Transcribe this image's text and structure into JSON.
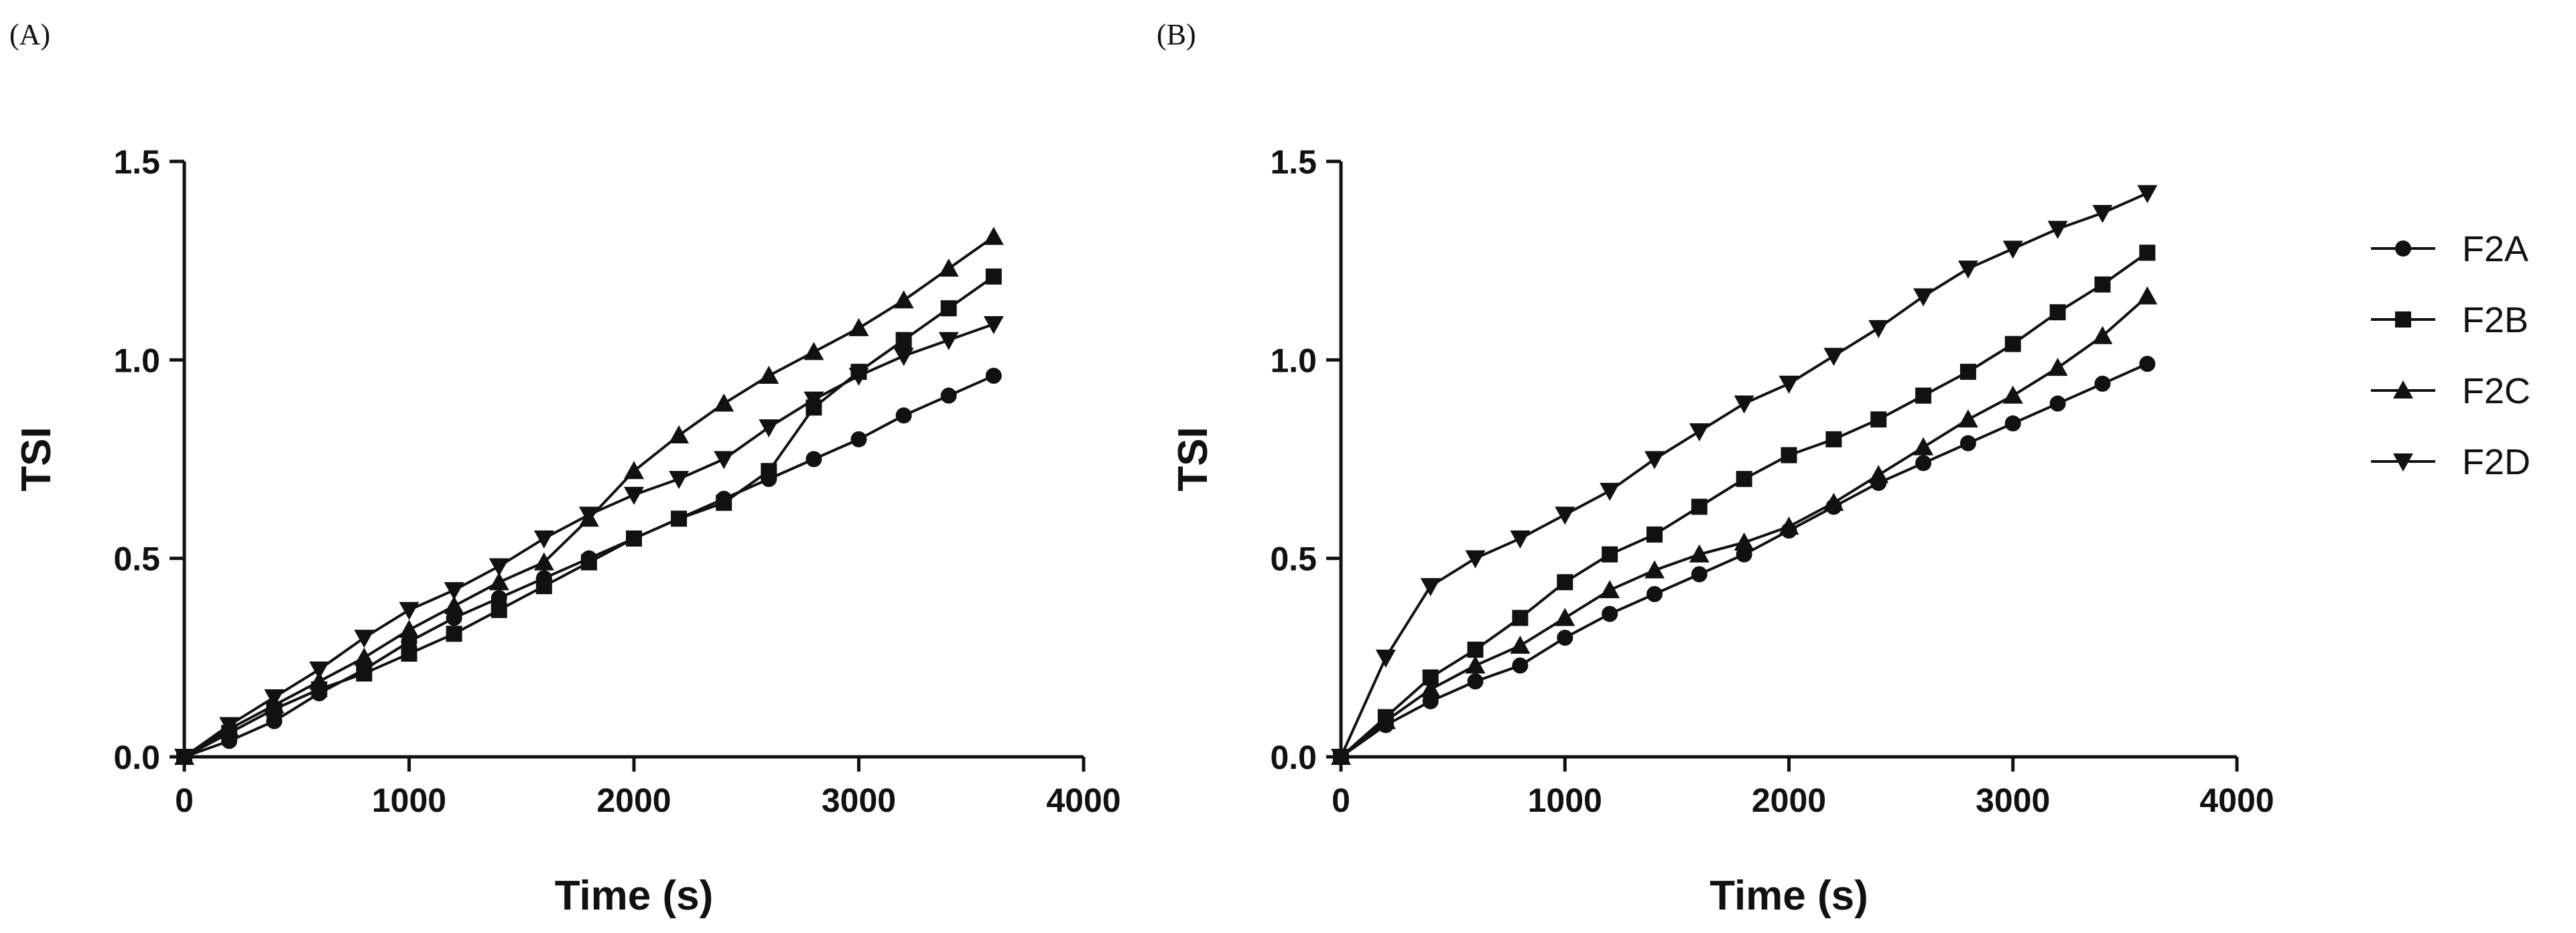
{
  "figure": {
    "panels": [
      "(A)",
      "(B)"
    ]
  },
  "chart_data": [
    {
      "type": "line",
      "panel": "(A)",
      "title": "",
      "xlabel": "Time (s)",
      "ylabel": "TSI",
      "xlim": [
        0,
        4000
      ],
      "ylim": [
        0,
        1.5
      ],
      "xticks": [
        0,
        1000,
        2000,
        3000,
        4000
      ],
      "yticks": [
        0.0,
        0.5,
        1.0,
        1.5
      ],
      "xtick_labels": [
        "0",
        "1000",
        "2000",
        "3000",
        "4000"
      ],
      "ytick_labels": [
        "0.0",
        "0.5",
        "1.0",
        "1.5"
      ],
      "grid": false,
      "x": [
        0,
        200,
        400,
        600,
        800,
        1000,
        1200,
        1400,
        1600,
        1800,
        2000,
        2200,
        2400,
        2600,
        2800,
        3000,
        3200,
        3400,
        3600
      ],
      "series": [
        {
          "name": "F2A",
          "marker": "circle",
          "values": [
            0.0,
            0.04,
            0.09,
            0.16,
            0.22,
            0.29,
            0.35,
            0.4,
            0.45,
            0.5,
            0.55,
            0.6,
            0.65,
            0.7,
            0.75,
            0.8,
            0.86,
            0.91,
            0.96
          ]
        },
        {
          "name": "F2B",
          "marker": "square",
          "values": [
            0.0,
            0.06,
            0.12,
            0.17,
            0.21,
            0.26,
            0.31,
            0.37,
            0.43,
            0.49,
            0.55,
            0.6,
            0.64,
            0.72,
            0.88,
            0.97,
            1.05,
            1.13,
            1.21
          ]
        },
        {
          "name": "F2C",
          "marker": "triangle-up",
          "values": [
            0.0,
            0.07,
            0.13,
            0.19,
            0.25,
            0.32,
            0.38,
            0.44,
            0.49,
            0.6,
            0.72,
            0.81,
            0.89,
            0.96,
            1.02,
            1.08,
            1.15,
            1.23,
            1.31
          ]
        },
        {
          "name": "F2D",
          "marker": "triangle-down",
          "values": [
            0.0,
            0.08,
            0.15,
            0.22,
            0.3,
            0.37,
            0.42,
            0.48,
            0.55,
            0.61,
            0.66,
            0.7,
            0.75,
            0.83,
            0.9,
            0.96,
            1.01,
            1.05,
            1.09
          ]
        }
      ]
    },
    {
      "type": "line",
      "panel": "(B)",
      "title": "",
      "xlabel": "Time (s)",
      "ylabel": "TSI",
      "xlim": [
        0,
        4000
      ],
      "ylim": [
        0,
        1.5
      ],
      "xticks": [
        0,
        1000,
        2000,
        3000,
        4000
      ],
      "yticks": [
        0.0,
        0.5,
        1.0,
        1.5
      ],
      "xtick_labels": [
        "0",
        "1000",
        "2000",
        "3000",
        "4000"
      ],
      "ytick_labels": [
        "0.0",
        "0.5",
        "1.0",
        "1.5"
      ],
      "grid": false,
      "legend": "right",
      "x": [
        0,
        200,
        400,
        600,
        800,
        1000,
        1200,
        1400,
        1600,
        1800,
        2000,
        2200,
        2400,
        2600,
        2800,
        3000,
        3200,
        3400,
        3600
      ],
      "series": [
        {
          "name": "F2A",
          "marker": "circle",
          "values": [
            0.0,
            0.08,
            0.14,
            0.19,
            0.23,
            0.3,
            0.36,
            0.41,
            0.46,
            0.51,
            0.57,
            0.63,
            0.69,
            0.74,
            0.79,
            0.84,
            0.89,
            0.94,
            0.99
          ]
        },
        {
          "name": "F2B",
          "marker": "square",
          "values": [
            0.0,
            0.1,
            0.2,
            0.27,
            0.35,
            0.44,
            0.51,
            0.56,
            0.63,
            0.7,
            0.76,
            0.8,
            0.85,
            0.91,
            0.97,
            1.04,
            1.12,
            1.19,
            1.27
          ]
        },
        {
          "name": "F2C",
          "marker": "triangle-up",
          "values": [
            0.0,
            0.09,
            0.17,
            0.23,
            0.28,
            0.35,
            0.42,
            0.47,
            0.51,
            0.54,
            0.58,
            0.64,
            0.71,
            0.78,
            0.85,
            0.91,
            0.98,
            1.06,
            1.16
          ]
        },
        {
          "name": "F2D",
          "marker": "triangle-down",
          "values": [
            0.0,
            0.25,
            0.43,
            0.5,
            0.55,
            0.61,
            0.67,
            0.75,
            0.82,
            0.89,
            0.94,
            1.01,
            1.08,
            1.16,
            1.23,
            1.28,
            1.33,
            1.37,
            1.42
          ]
        }
      ]
    }
  ],
  "legend": {
    "entries": [
      {
        "name": "F2A",
        "marker": "circle"
      },
      {
        "name": "F2B",
        "marker": "square"
      },
      {
        "name": "F2C",
        "marker": "triangle-up"
      },
      {
        "name": "F2D",
        "marker": "triangle-down"
      }
    ]
  }
}
